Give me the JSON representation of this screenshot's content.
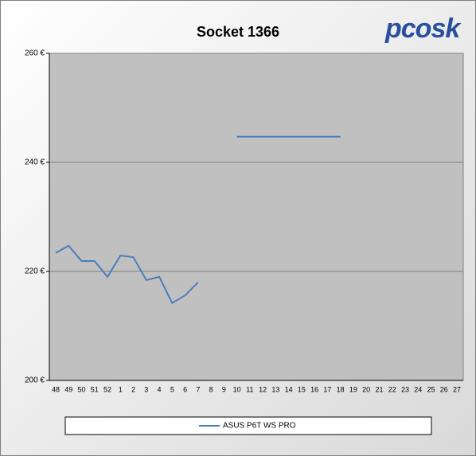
{
  "chart_data": {
    "type": "line",
    "title": "Socket 1366",
    "logo": "pcosk",
    "categories": [
      "48",
      "49",
      "50",
      "51",
      "52",
      "1",
      "2",
      "3",
      "4",
      "5",
      "6",
      "7",
      "8",
      "9",
      "10",
      "11",
      "12",
      "13",
      "14",
      "15",
      "16",
      "17",
      "18",
      "19",
      "20",
      "21",
      "22",
      "23",
      "24",
      "25",
      "26",
      "27"
    ],
    "series": [
      {
        "name": "ASUS P6T WS PRO",
        "color": "#4a7ebb",
        "values": [
          223.4,
          224.7,
          221.9,
          221.9,
          219.0,
          222.9,
          222.6,
          218.4,
          219.0,
          214.2,
          215.6,
          218.0,
          null,
          null,
          244.7,
          244.7,
          244.7,
          244.7,
          244.7,
          244.7,
          244.7,
          244.7,
          244.7,
          null,
          null,
          null,
          null,
          null,
          null,
          null,
          null,
          null
        ]
      }
    ],
    "ylim": [
      200,
      260
    ],
    "yticks": [
      {
        "value": 200,
        "label": "200 €"
      },
      {
        "value": 220,
        "label": "220 €"
      },
      {
        "value": 240,
        "label": "240 €"
      },
      {
        "value": 260,
        "label": "260 €"
      }
    ],
    "grid": true
  }
}
